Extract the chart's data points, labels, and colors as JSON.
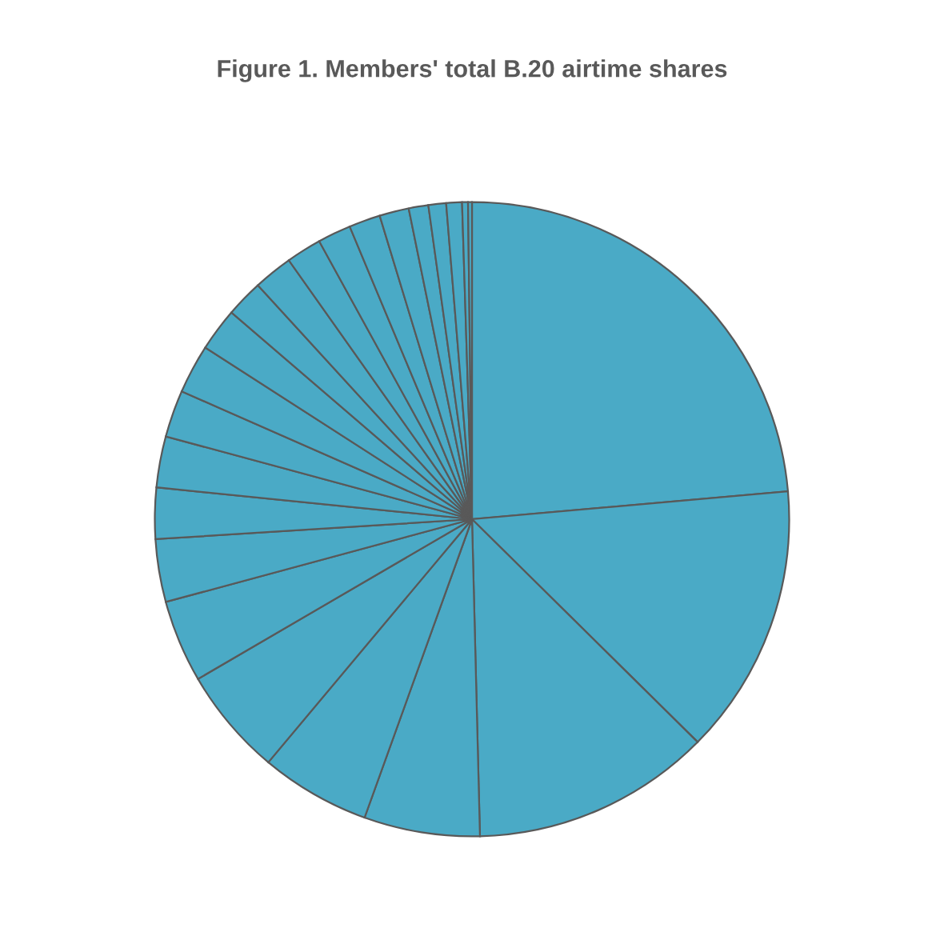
{
  "chart_data": {
    "type": "pie",
    "title": "Figure 1. Members' total B.20 airtime shares",
    "categories": [
      null,
      null,
      null,
      null,
      null,
      null,
      null,
      null,
      null,
      null,
      null,
      null,
      null,
      null,
      null,
      null,
      null,
      null,
      null,
      null,
      null,
      null,
      null,
      null
    ],
    "values": [
      23.6,
      13.8,
      12.2,
      5.9,
      5.6,
      5.5,
      4.2,
      3.2,
      2.6,
      2.6,
      2.4,
      2.5,
      2.2,
      1.9,
      2.0,
      1.8,
      1.7,
      1.6,
      1.5,
      1.0,
      0.9,
      0.8,
      0.3,
      0.2
    ],
    "colors": [
      "#4aaac6",
      "#4aaac6",
      "#4aaac6",
      "#4aaac6",
      "#4aaac6",
      "#4aaac6",
      "#4aaac6",
      "#4aaac6",
      "#4aaac6",
      "#4aaac6",
      "#4aaac6",
      "#4aaac6",
      "#4aaac6",
      "#4aaac6",
      "#4aaac6",
      "#4aaac6",
      "#4aaac6",
      "#4aaac6",
      "#4aaac6",
      "#4aaac6",
      "#4aaac6",
      "#4aaac6",
      "#4aaac6",
      "#4aaac6"
    ]
  }
}
